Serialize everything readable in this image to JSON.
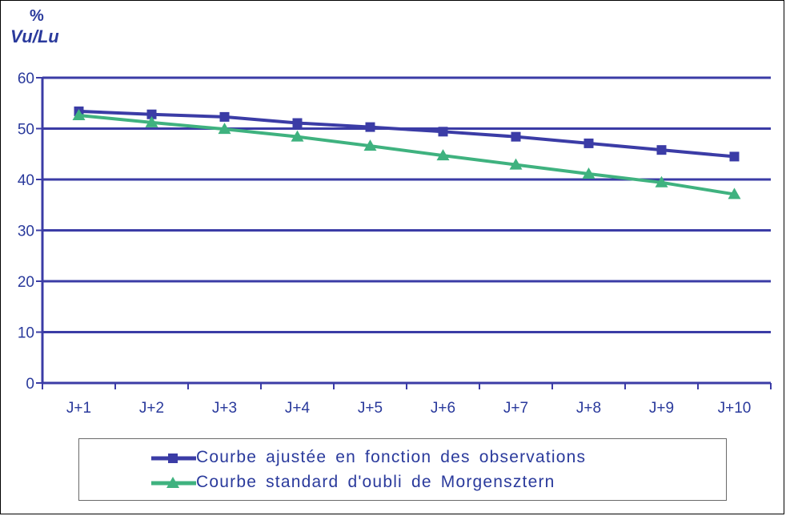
{
  "chart_data": {
    "type": "line",
    "ylabel_unit": "%",
    "ylabel": "Vu/Lu",
    "categories": [
      "J+1",
      "J+2",
      "J+3",
      "J+4",
      "J+5",
      "J+6",
      "J+7",
      "J+8",
      "J+9",
      "J+10"
    ],
    "ylim": [
      0,
      60
    ],
    "yticks": [
      0,
      10,
      20,
      30,
      40,
      50,
      60
    ],
    "grid": true,
    "legend_position": "bottom",
    "series": [
      {
        "name": "Courbe ajustée en fonction des observations",
        "marker": "square",
        "color": "#3b3ca6",
        "values": [
          53.4,
          52.8,
          52.3,
          51.1,
          50.3,
          49.4,
          48.4,
          47.1,
          45.8,
          44.5
        ]
      },
      {
        "name": "Courbe standard d'oubli de Morgensztern",
        "marker": "triangle",
        "color": "#3fb27f",
        "values": [
          52.6,
          51.2,
          49.9,
          48.4,
          46.6,
          44.7,
          42.9,
          41.1,
          39.4,
          37.1
        ]
      }
    ]
  },
  "colors": {
    "axis": "#3b3ca6",
    "text": "#2a3a9c"
  }
}
